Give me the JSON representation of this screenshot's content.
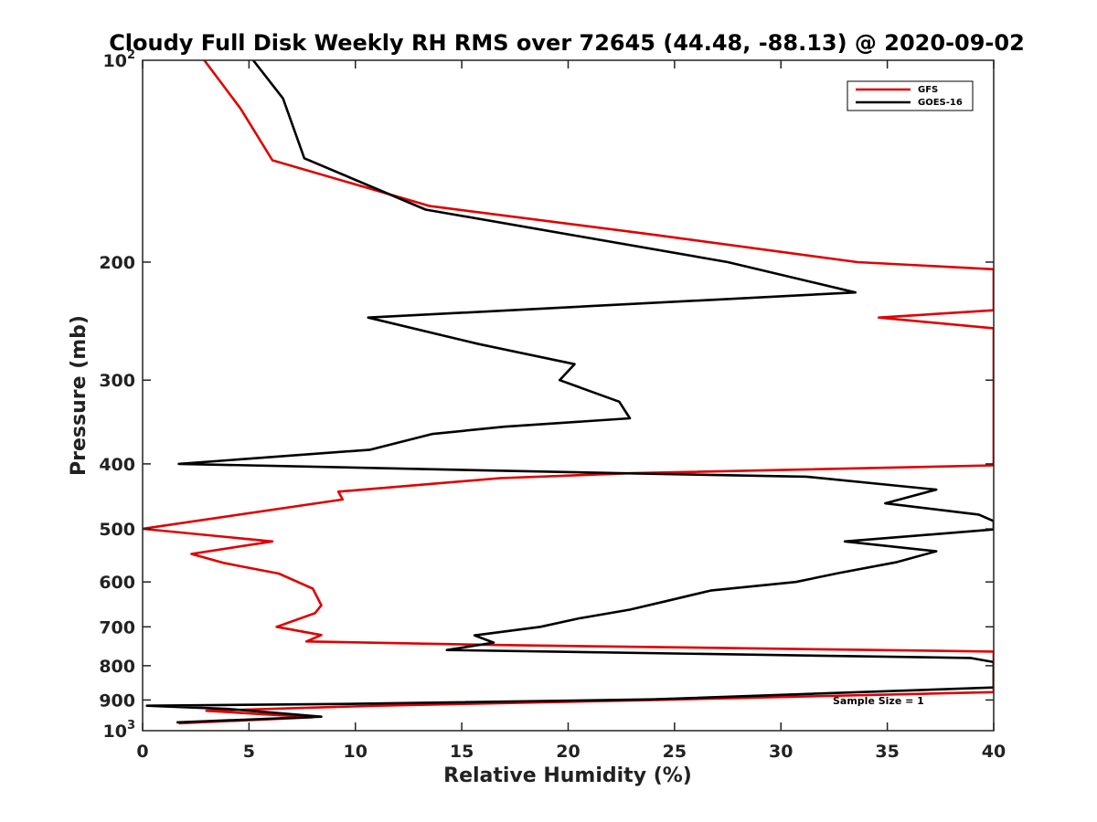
{
  "chart_data": {
    "type": "line",
    "title": "Cloudy Full Disk Weekly RH RMS over 72645 (44.48, -88.13) @ 2020-09-02",
    "xlabel": "Relative Humidity (%)",
    "ylabel": "Pressure (mb)",
    "xlim": [
      0,
      40
    ],
    "ylim": [
      100,
      1000
    ],
    "y_scale": "log",
    "y_reversed": true,
    "grid": false,
    "legend_position": "top-right",
    "x_ticks": [
      "0",
      "5",
      "10",
      "15",
      "20",
      "25",
      "30",
      "35",
      "40"
    ],
    "y_ticks": [
      {
        "value": 200,
        "label": "200"
      },
      {
        "value": 300,
        "label": "300"
      },
      {
        "value": 400,
        "label": "400"
      },
      {
        "value": 500,
        "label": "500"
      },
      {
        "value": 600,
        "label": "600"
      },
      {
        "value": 700,
        "label": "700"
      },
      {
        "value": 800,
        "label": "800"
      },
      {
        "value": 900,
        "label": "900"
      }
    ],
    "y_tick_pow": [
      {
        "value": 100,
        "base": "10",
        "exp": "2"
      },
      {
        "value": 1000,
        "base": "10",
        "exp": "3"
      }
    ],
    "annotation": "Sample Size = 1",
    "series": [
      {
        "name": "GFS",
        "color": "#e00000",
        "points": [
          {
            "x": 2.9,
            "y": 100
          },
          {
            "x": 4.6,
            "y": 118
          },
          {
            "x": 6.1,
            "y": 141
          },
          {
            "x": 13.5,
            "y": 165
          },
          {
            "x": 24.0,
            "y": 182
          },
          {
            "x": 33.6,
            "y": 200
          },
          {
            "x": 40.0,
            "y": 205
          },
          {
            "x": 40.0,
            "y": 236
          },
          {
            "x": 34.6,
            "y": 242
          },
          {
            "x": 40.0,
            "y": 251
          },
          {
            "x": 40.0,
            "y": 402
          },
          {
            "x": 23.0,
            "y": 413
          },
          {
            "x": 16.8,
            "y": 420
          },
          {
            "x": 9.2,
            "y": 440
          },
          {
            "x": 9.4,
            "y": 452
          },
          {
            "x": 0.0,
            "y": 500
          },
          {
            "x": 6.1,
            "y": 522
          },
          {
            "x": 2.3,
            "y": 545
          },
          {
            "x": 3.8,
            "y": 562
          },
          {
            "x": 6.4,
            "y": 583
          },
          {
            "x": 8.0,
            "y": 614
          },
          {
            "x": 8.4,
            "y": 650
          },
          {
            "x": 8.1,
            "y": 668
          },
          {
            "x": 6.3,
            "y": 700
          },
          {
            "x": 8.4,
            "y": 720
          },
          {
            "x": 7.7,
            "y": 736
          },
          {
            "x": 16.7,
            "y": 745
          },
          {
            "x": 40.0,
            "y": 762
          },
          {
            "x": 40.0,
            "y": 876
          },
          {
            "x": 24.0,
            "y": 900
          },
          {
            "x": 11.0,
            "y": 918
          },
          {
            "x": 3.0,
            "y": 934
          },
          {
            "x": 8.0,
            "y": 955
          },
          {
            "x": 1.7,
            "y": 975
          }
        ]
      },
      {
        "name": "GOES-16",
        "color": "#000000",
        "points": [
          {
            "x": 5.2,
            "y": 100
          },
          {
            "x": 6.6,
            "y": 114
          },
          {
            "x": 7.6,
            "y": 140
          },
          {
            "x": 13.3,
            "y": 167
          },
          {
            "x": 20.5,
            "y": 183
          },
          {
            "x": 27.5,
            "y": 200
          },
          {
            "x": 33.5,
            "y": 222
          },
          {
            "x": 10.6,
            "y": 242
          },
          {
            "x": 15.8,
            "y": 265
          },
          {
            "x": 20.3,
            "y": 284
          },
          {
            "x": 19.6,
            "y": 300
          },
          {
            "x": 22.4,
            "y": 323
          },
          {
            "x": 22.9,
            "y": 342
          },
          {
            "x": 17.0,
            "y": 352
          },
          {
            "x": 13.6,
            "y": 361
          },
          {
            "x": 10.7,
            "y": 381
          },
          {
            "x": 1.7,
            "y": 400
          },
          {
            "x": 22.4,
            "y": 413
          },
          {
            "x": 31.2,
            "y": 418
          },
          {
            "x": 37.3,
            "y": 437
          },
          {
            "x": 34.9,
            "y": 458
          },
          {
            "x": 39.3,
            "y": 476
          },
          {
            "x": 40.0,
            "y": 487
          },
          {
            "x": 40.0,
            "y": 501
          },
          {
            "x": 33.0,
            "y": 522
          },
          {
            "x": 37.3,
            "y": 540
          },
          {
            "x": 35.4,
            "y": 561
          },
          {
            "x": 32.7,
            "y": 582
          },
          {
            "x": 30.7,
            "y": 600
          },
          {
            "x": 26.7,
            "y": 618
          },
          {
            "x": 24.6,
            "y": 641
          },
          {
            "x": 22.9,
            "y": 660
          },
          {
            "x": 20.5,
            "y": 680
          },
          {
            "x": 18.7,
            "y": 700
          },
          {
            "x": 15.6,
            "y": 721
          },
          {
            "x": 16.5,
            "y": 739
          },
          {
            "x": 14.3,
            "y": 758
          },
          {
            "x": 38.9,
            "y": 779
          },
          {
            "x": 40.0,
            "y": 790
          },
          {
            "x": 40.0,
            "y": 862
          },
          {
            "x": 24.0,
            "y": 898
          },
          {
            "x": 10.0,
            "y": 912
          },
          {
            "x": 0.2,
            "y": 918
          },
          {
            "x": 4.0,
            "y": 928
          },
          {
            "x": 8.4,
            "y": 953
          },
          {
            "x": 1.6,
            "y": 972
          }
        ]
      }
    ]
  }
}
